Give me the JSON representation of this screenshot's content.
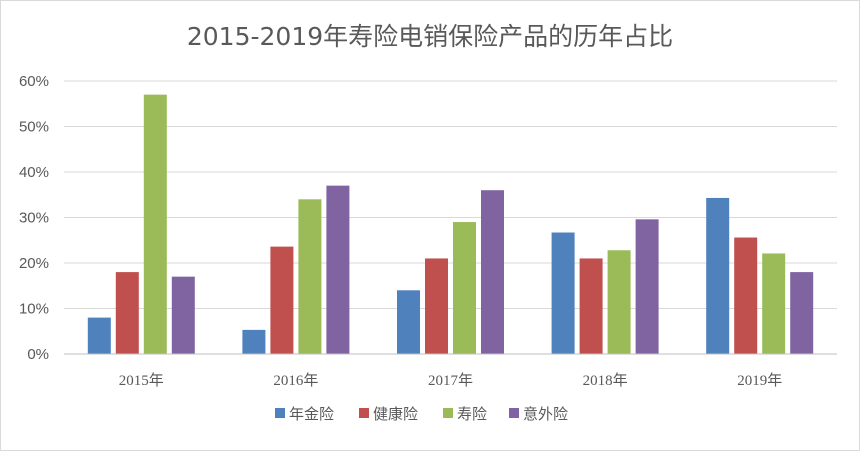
{
  "chart_data": {
    "type": "bar",
    "title": "2015-2019年寿险电销保险产品的历年占比",
    "categories": [
      "2015年",
      "2016年",
      "2017年",
      "2018年",
      "2019年"
    ],
    "series": [
      {
        "name": "年金险",
        "color": "#4f81bd",
        "values": [
          8,
          5.3,
          14,
          26.7,
          34.3
        ]
      },
      {
        "name": "健康险",
        "color": "#c0504d",
        "values": [
          18,
          23.6,
          21,
          21,
          25.6
        ]
      },
      {
        "name": "寿险",
        "color": "#9bbb59",
        "values": [
          57,
          34,
          29,
          22.8,
          22.1
        ]
      },
      {
        "name": "意外险",
        "color": "#8064a2",
        "values": [
          17,
          37,
          36,
          29.6,
          18
        ]
      }
    ],
    "ylim": [
      0,
      60
    ],
    "yticks": [
      "0%",
      "10%",
      "20%",
      "30%",
      "40%",
      "50%",
      "60%"
    ],
    "ytick_values": [
      0,
      10,
      20,
      30,
      40,
      50,
      60
    ],
    "grid": true,
    "legend_position": "bottom"
  }
}
